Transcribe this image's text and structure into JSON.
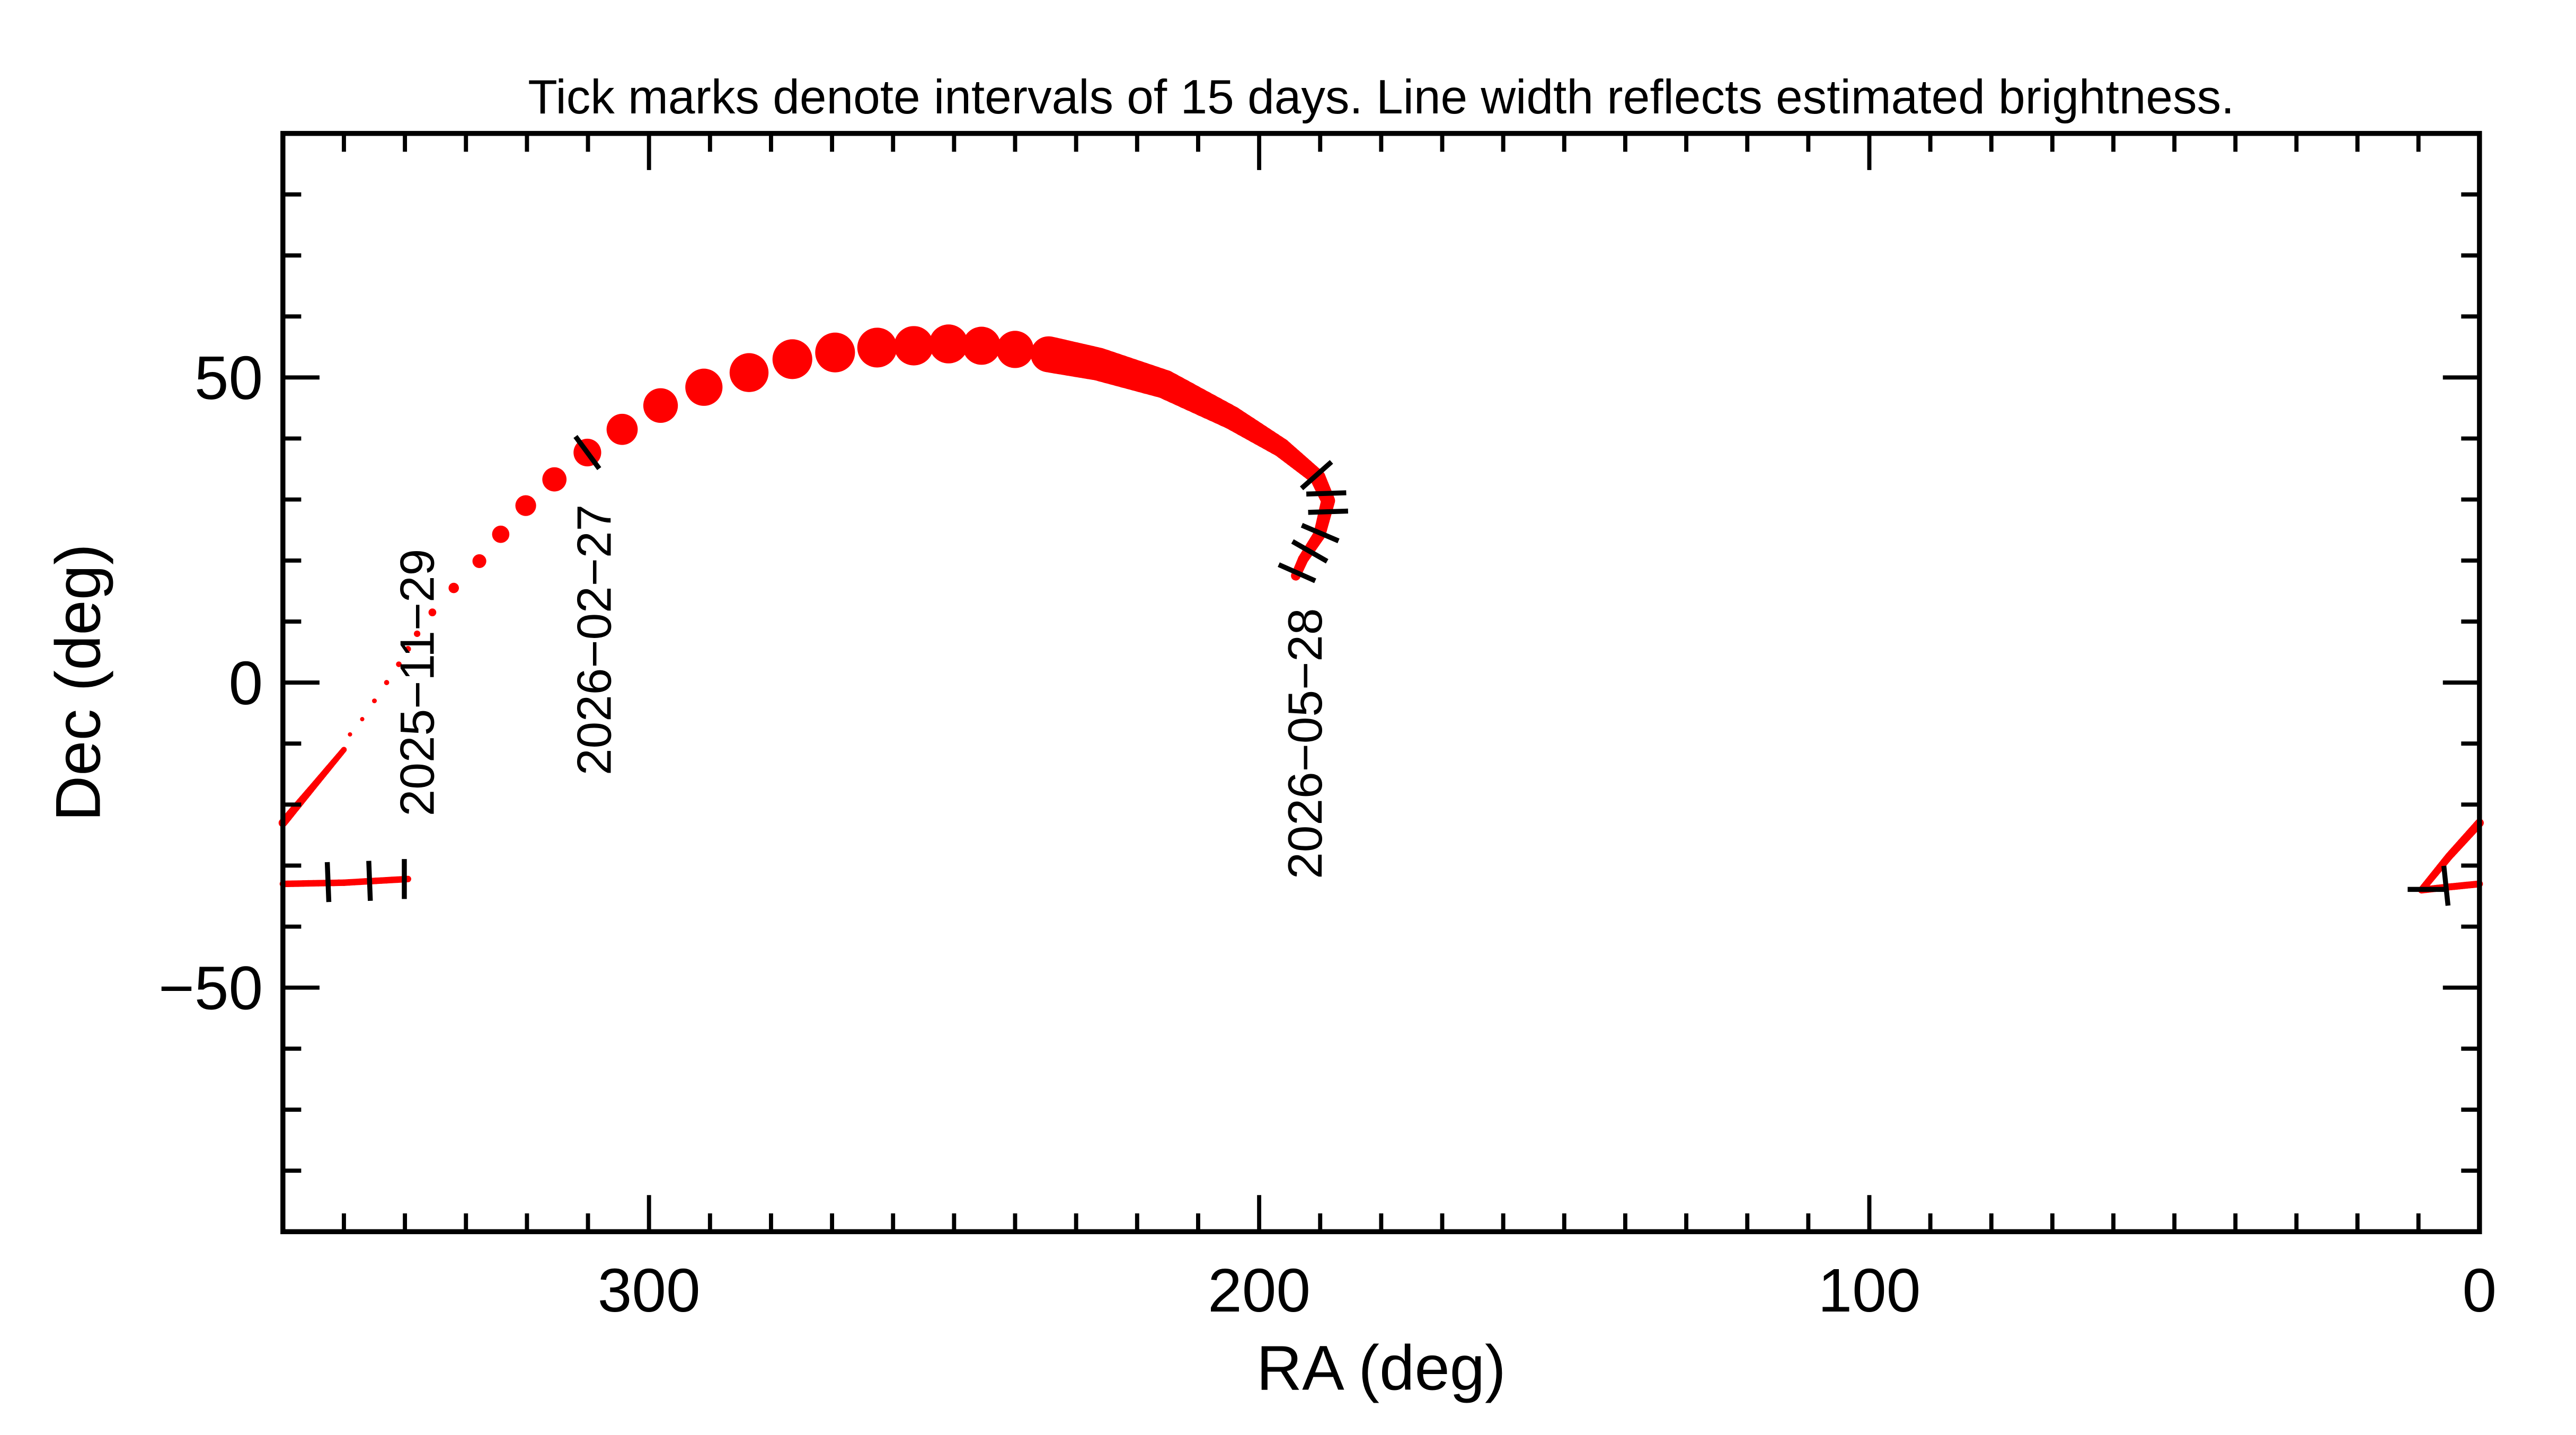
{
  "chart_data": {
    "type": "line",
    "title": "Tick marks denote intervals of 15 days.  Line width reflects estimated brightness.",
    "xlabel": "RA (deg)",
    "ylabel": "Dec (deg)",
    "xlim": [
      360,
      0
    ],
    "ylim": [
      -90,
      90
    ],
    "x_major_ticks": [
      300,
      200,
      100,
      0
    ],
    "x_tick_labels": [
      "300",
      "200",
      "100",
      "0"
    ],
    "x_minor_step": 10,
    "y_major_ticks": [
      50,
      0,
      -50
    ],
    "y_tick_labels": [
      "50",
      "0",
      "−50"
    ],
    "y_minor_step": 10,
    "grid": false,
    "colors": {
      "track": "#ff0000",
      "ticks": "#000000",
      "axes": "#000000"
    },
    "segments": [
      {
        "style": "line",
        "points": [
          [
            360,
            -33.0,
            1.5
          ],
          [
            350,
            -32.8,
            1.5
          ],
          [
            339.5,
            -32.2,
            1.5
          ]
        ]
      },
      {
        "style": "line",
        "points": [
          [
            0,
            -33.0,
            1.6
          ],
          [
            5,
            -33.5,
            1.6
          ],
          [
            9.5,
            -34.0,
            1.6
          ],
          [
            5,
            -28.5,
            1.8
          ],
          [
            0,
            -23.0,
            2.0
          ]
        ]
      },
      {
        "style": "line",
        "points": [
          [
            360,
            -23.0,
            2.0
          ],
          [
            355,
            -17,
            1.6
          ],
          [
            350,
            -11,
            1.3
          ]
        ]
      },
      {
        "style": "dots",
        "points": [
          [
            349,
            -8.5,
            1.0
          ],
          [
            347,
            -6,
            1.0
          ],
          [
            345,
            -3,
            1.1
          ],
          [
            343,
            0,
            1.2
          ],
          [
            341,
            3,
            1.3
          ],
          [
            339.5,
            5.5,
            1.4
          ],
          [
            338,
            8,
            1.5
          ],
          [
            335.5,
            11.5,
            1.8
          ],
          [
            332,
            15.5,
            2.4
          ],
          [
            327.8,
            19.9,
            3.2
          ],
          [
            324.3,
            24.3,
            4.0
          ],
          [
            320.2,
            29.0,
            4.8
          ],
          [
            315.5,
            33.3,
            5.6
          ],
          [
            310.1,
            37.7,
            6.4
          ],
          [
            304.4,
            41.5,
            7.2
          ],
          [
            298.1,
            45.4,
            8.0
          ],
          [
            291.0,
            48.4,
            8.6
          ],
          [
            283.6,
            50.8,
            9.0
          ],
          [
            276.5,
            53.0,
            9.2
          ],
          [
            269.5,
            54.1,
            9.2
          ],
          [
            262.6,
            54.9,
            9.2
          ],
          [
            256.6,
            55.2,
            9.1
          ],
          [
            250.9,
            55.5,
            9.0
          ],
          [
            245.5,
            55.2,
            8.8
          ],
          [
            240.0,
            54.6,
            8.6
          ],
          [
            234.5,
            53.8,
            8.3
          ]
        ]
      },
      {
        "style": "line",
        "points": [
          [
            234.5,
            53.8,
            8.3
          ],
          [
            226.4,
            52.2,
            7.6
          ],
          [
            215.5,
            48.9,
            6.6
          ],
          [
            204.5,
            43.4,
            5.4
          ],
          [
            196.4,
            38.5,
            4.4
          ],
          [
            190.4,
            33.6,
            3.6
          ],
          [
            188.7,
            29.8,
            3.2
          ],
          [
            190.1,
            24.3,
            2.8
          ],
          [
            192.8,
            20.2,
            2.4
          ],
          [
            194.0,
            17.5,
            2.2
          ]
        ]
      }
    ],
    "tick_marks": [
      [
        352.6,
        -32.7
      ],
      [
        345.8,
        -32.5
      ],
      [
        340.1,
        -32.2
      ],
      [
        8.5,
        -33.9
      ],
      [
        5.5,
        -33.3
      ],
      [
        310.1,
        37.7
      ],
      [
        190.6,
        34.0
      ],
      [
        189.0,
        31.0
      ],
      [
        188.7,
        28.0
      ],
      [
        190.0,
        24.5
      ],
      [
        191.7,
        21.5
      ],
      [
        193.8,
        18.0
      ]
    ],
    "date_labels": [
      {
        "text": "2025−11−29",
        "ra": 338,
        "dec": 0
      },
      {
        "text": "2026−02−27",
        "ra": 309,
        "dec": 7
      },
      {
        "text": "2026−05−28",
        "ra": 192.5,
        "dec": -10
      }
    ]
  }
}
